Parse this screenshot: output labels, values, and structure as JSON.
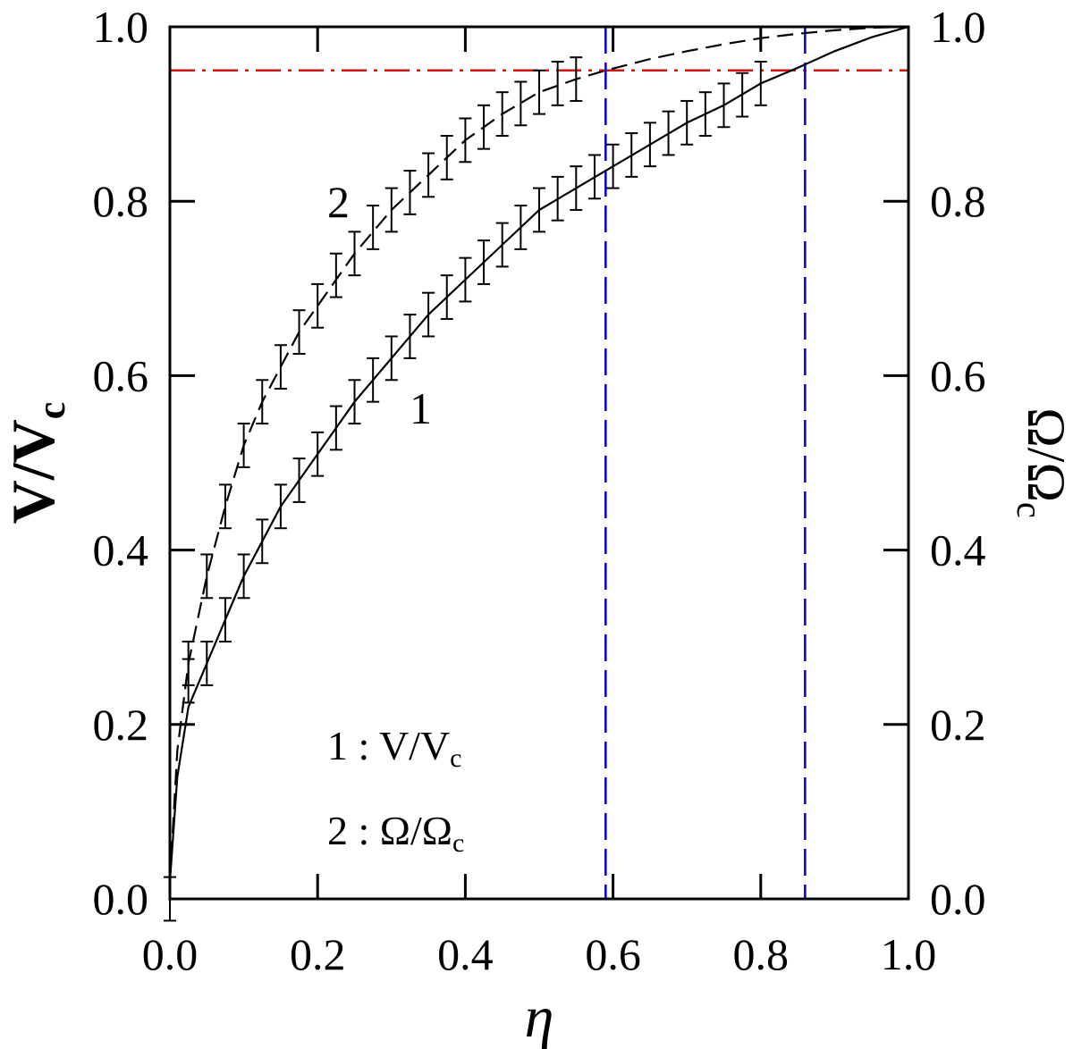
{
  "chart_data": {
    "type": "line",
    "xlabel": "η",
    "ylabel_left": {
      "main": "V/V",
      "sub": "c"
    },
    "ylabel_right": {
      "main": "Ω/Ω",
      "sub": "c"
    },
    "xlim": [
      0,
      1
    ],
    "ylim": [
      0,
      1
    ],
    "x_ticks": [
      "0.0",
      "0.2",
      "0.4",
      "0.6",
      "0.8",
      "1.0"
    ],
    "y_ticks": [
      "0.0",
      "0.2",
      "0.4",
      "0.6",
      "0.8",
      "1.0"
    ],
    "grid": false,
    "curve_labels": [
      "1",
      "2"
    ],
    "legend": [
      {
        "number": "1",
        "main": " : V/V",
        "sub": "c"
      },
      {
        "number": "2",
        "main": " : Ω/Ω",
        "sub": "c"
      }
    ],
    "series": [
      {
        "line_style": "solid",
        "color": "#000000",
        "x": [
          0.0,
          0.01,
          0.025,
          0.05,
          0.075,
          0.1,
          0.15,
          0.2,
          0.25,
          0.3,
          0.35,
          0.4,
          0.45,
          0.5,
          0.55,
          0.6,
          0.65,
          0.7,
          0.75,
          0.8,
          0.85,
          0.9,
          0.95,
          1.0
        ],
        "y": [
          0.02,
          0.14,
          0.22,
          0.27,
          0.32,
          0.37,
          0.45,
          0.51,
          0.57,
          0.62,
          0.67,
          0.71,
          0.75,
          0.79,
          0.815,
          0.84,
          0.865,
          0.89,
          0.91,
          0.935,
          0.953,
          0.972,
          0.988,
          1.0
        ],
        "errorbars": {
          "x": [
            0.025,
            0.05,
            0.075,
            0.1,
            0.125,
            0.15,
            0.175,
            0.2,
            0.225,
            0.25,
            0.275,
            0.3,
            0.325,
            0.35,
            0.375,
            0.4,
            0.425,
            0.45,
            0.475,
            0.5,
            0.525,
            0.55,
            0.575,
            0.6,
            0.625,
            0.65,
            0.675,
            0.7,
            0.725,
            0.75,
            0.775,
            0.8
          ],
          "y": [
            0.25,
            0.27,
            0.32,
            0.37,
            0.41,
            0.45,
            0.48,
            0.51,
            0.54,
            0.57,
            0.595,
            0.62,
            0.645,
            0.67,
            0.69,
            0.71,
            0.73,
            0.75,
            0.77,
            0.79,
            0.803,
            0.815,
            0.828,
            0.84,
            0.853,
            0.865,
            0.878,
            0.89,
            0.9,
            0.91,
            0.922,
            0.935
          ],
          "half_height": 0.025
        }
      },
      {
        "line_style": "dashed",
        "color": "#000000",
        "x": [
          0.0,
          0.01,
          0.025,
          0.05,
          0.075,
          0.1,
          0.125,
          0.15,
          0.175,
          0.2,
          0.25,
          0.3,
          0.35,
          0.4,
          0.45,
          0.5,
          0.55,
          0.59,
          0.65,
          0.7,
          0.75,
          0.8,
          0.85,
          0.9,
          0.95,
          1.0
        ],
        "y": [
          0.02,
          0.17,
          0.27,
          0.37,
          0.45,
          0.52,
          0.57,
          0.61,
          0.65,
          0.68,
          0.74,
          0.79,
          0.83,
          0.87,
          0.9,
          0.925,
          0.94,
          0.95,
          0.963,
          0.972,
          0.98,
          0.987,
          0.992,
          0.996,
          0.999,
          1.0
        ],
        "errorbars": {
          "x": [
            0.0,
            0.025,
            0.05,
            0.075,
            0.1,
            0.125,
            0.15,
            0.175,
            0.2,
            0.225,
            0.25,
            0.275,
            0.3,
            0.325,
            0.35,
            0.375,
            0.4,
            0.425,
            0.45,
            0.475,
            0.5,
            0.525,
            0.55
          ],
          "y": [
            0.0,
            0.27,
            0.37,
            0.45,
            0.52,
            0.57,
            0.61,
            0.65,
            0.68,
            0.715,
            0.74,
            0.77,
            0.79,
            0.81,
            0.83,
            0.85,
            0.87,
            0.885,
            0.9,
            0.912,
            0.925,
            0.935,
            0.94
          ],
          "half_height": 0.025
        }
      }
    ],
    "reference_lines": [
      {
        "orientation": "horizontal",
        "value": 0.95,
        "color": "#ff0000",
        "style": "dash-dot"
      },
      {
        "orientation": "vertical",
        "value": 0.59,
        "color": "#0000cc",
        "style": "dashed"
      },
      {
        "orientation": "vertical",
        "value": 0.86,
        "color": "#0000cc",
        "style": "dashed"
      }
    ]
  }
}
